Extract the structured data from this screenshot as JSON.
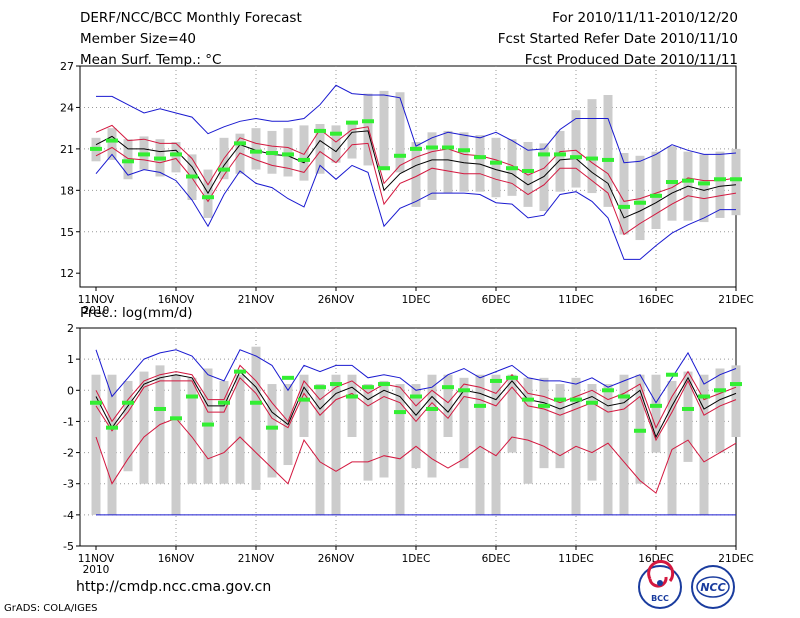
{
  "header": {
    "title": "DERF/NCC/BCC Monthly Forecast",
    "member_size": "Member Size=40",
    "variable": "Mean Surf. Temp.: °C",
    "period": "For 2010/11/11-2010/12/20",
    "started": "Fcst Started Refer Date 2010/11/10",
    "produced": "Fcst Produced Date 2010/11/11"
  },
  "footer": {
    "url": "http://cmdp.ncc.cma.gov.cn",
    "grads": "GrADS: COLA/IGES",
    "logo1_text": "BCC",
    "logo2_text": "NCC"
  },
  "colors": {
    "box": "#cccccc",
    "mean": "#000000",
    "obs": "#33ee33",
    "spread": "#d3183f",
    "extreme": "#1a1ad0",
    "grid": "#999999"
  },
  "chart_data": [
    {
      "type": "line",
      "title": "Mean Surf. Temp.: °C",
      "x_tick_labels": [
        "11NOV",
        "16NOV",
        "21NOV",
        "26NOV",
        "1DEC",
        "6DEC",
        "11DEC",
        "16DEC",
        "21DEC"
      ],
      "x_tick_day_index": [
        0,
        5,
        10,
        15,
        20,
        25,
        30,
        35,
        40
      ],
      "year_label": "2010",
      "ylim": [
        11,
        27
      ],
      "y_ticks": [
        12,
        15,
        18,
        21,
        24,
        27
      ],
      "box_top": [
        21.8,
        22.5,
        21.7,
        21.9,
        21.7,
        21.5,
        20.6,
        19.5,
        21.8,
        22.1,
        22.5,
        22.3,
        22.5,
        22.7,
        22.8,
        22.7,
        23.0,
        25.0,
        25.2,
        25.1,
        21.5,
        22.2,
        22.3,
        22.2,
        22.0,
        21.8,
        21.7,
        21.5,
        21.4,
        22.3,
        23.8,
        24.6,
        24.9,
        20.7,
        20.5,
        20.8,
        21.2,
        20.8,
        20.6,
        20.8,
        21.0
      ],
      "box_bottom": [
        20.1,
        20.2,
        18.8,
        19.5,
        19.0,
        19.3,
        17.3,
        16.0,
        18.8,
        19.2,
        19.5,
        19.2,
        19.0,
        18.7,
        19.2,
        20.0,
        20.3,
        19.8,
        19.6,
        19.3,
        16.8,
        17.3,
        17.8,
        17.9,
        17.9,
        17.5,
        17.6,
        16.8,
        16.5,
        17.9,
        18.2,
        17.8,
        16.8,
        14.8,
        14.4,
        15.2,
        15.8,
        15.8,
        15.7,
        16.0,
        16.2
      ],
      "series": [
        {
          "name": "ensemble max",
          "color": "#1a1ad0",
          "values": [
            24.8,
            24.8,
            24.2,
            23.6,
            23.9,
            23.6,
            23.3,
            22.1,
            22.6,
            23.0,
            23.2,
            23.0,
            23.0,
            23.2,
            24.2,
            25.6,
            25.0,
            24.9,
            24.9,
            24.7,
            21.2,
            21.8,
            22.2,
            22.0,
            21.8,
            22.2,
            21.6,
            20.9,
            21.0,
            22.4,
            23.2,
            23.2,
            23.2,
            20.0,
            20.1,
            20.6,
            21.3,
            20.9,
            20.6,
            20.6,
            20.7
          ]
        },
        {
          "name": "spread upper",
          "color": "#d3183f",
          "values": [
            22.2,
            22.7,
            21.6,
            21.7,
            21.4,
            21.4,
            20.3,
            18.4,
            20.3,
            21.8,
            21.4,
            21.2,
            21.1,
            20.6,
            22.4,
            21.5,
            22.4,
            22.6,
            18.5,
            19.8,
            20.4,
            20.8,
            21.0,
            20.6,
            20.5,
            20.2,
            19.8,
            19.1,
            19.6,
            20.8,
            20.9,
            20.0,
            19.2,
            17.2,
            17.4,
            17.8,
            18.2,
            18.9,
            18.7,
            18.7,
            18.9
          ]
        },
        {
          "name": "ensemble mean",
          "color": "#000000",
          "values": [
            21.3,
            21.9,
            21.0,
            21.0,
            20.8,
            20.9,
            19.7,
            17.8,
            19.8,
            21.3,
            20.9,
            20.6,
            20.5,
            20.0,
            21.6,
            20.8,
            22.2,
            22.3,
            18.0,
            19.2,
            19.8,
            20.2,
            20.2,
            20.0,
            19.9,
            19.5,
            19.2,
            18.4,
            19.0,
            20.2,
            20.3,
            19.3,
            18.5,
            16.0,
            16.5,
            17.1,
            17.8,
            18.3,
            18.0,
            18.3,
            18.4
          ]
        },
        {
          "name": "spread lower",
          "color": "#d3183f",
          "values": [
            20.5,
            21.1,
            20.3,
            20.2,
            20.0,
            20.3,
            18.9,
            17.2,
            19.1,
            20.7,
            20.2,
            19.8,
            19.6,
            19.3,
            20.8,
            20.0,
            21.3,
            21.4,
            17.0,
            18.5,
            19.0,
            19.6,
            19.4,
            19.2,
            19.2,
            18.8,
            18.5,
            17.7,
            18.4,
            19.6,
            19.6,
            18.7,
            17.8,
            14.8,
            15.6,
            16.3,
            17.0,
            17.6,
            17.4,
            17.6,
            17.8
          ]
        },
        {
          "name": "ensemble min",
          "color": "#1a1ad0",
          "values": [
            19.2,
            20.6,
            19.1,
            19.5,
            19.3,
            18.7,
            17.3,
            15.4,
            17.7,
            19.4,
            18.5,
            18.2,
            17.4,
            16.8,
            19.8,
            18.8,
            19.8,
            19.3,
            15.4,
            16.7,
            17.2,
            17.8,
            17.8,
            17.8,
            17.7,
            17.1,
            17.0,
            16.0,
            16.2,
            17.7,
            17.9,
            17.2,
            16.0,
            13.0,
            13.0,
            14.0,
            14.9,
            15.5,
            16.0,
            16.6,
            16.6
          ]
        },
        {
          "name": "observation",
          "color": "#33ee33",
          "values": [
            21.0,
            21.6,
            20.1,
            20.6,
            20.3,
            20.6,
            19.0,
            17.5,
            19.5,
            21.4,
            20.8,
            20.7,
            20.6,
            20.2,
            22.3,
            22.1,
            22.9,
            23.0,
            19.6,
            20.5,
            21.0,
            21.1,
            21.1,
            20.9,
            20.4,
            20.0,
            19.6,
            19.4,
            20.6,
            20.6,
            20.4,
            20.3,
            20.2,
            16.8,
            17.1,
            17.6,
            18.6,
            18.7,
            18.5,
            18.8,
            18.8
          ]
        }
      ]
    },
    {
      "type": "line",
      "title": "Prec.: log(mm/d)",
      "x_tick_labels": [
        "11NOV",
        "16NOV",
        "21NOV",
        "26NOV",
        "1DEC",
        "6DEC",
        "11DEC",
        "16DEC",
        "21DEC"
      ],
      "x_tick_day_index": [
        0,
        5,
        10,
        15,
        20,
        25,
        30,
        35,
        40
      ],
      "year_label": "2010",
      "ylim": [
        -5,
        2
      ],
      "y_ticks": [
        -5,
        -4,
        -3,
        -2,
        -1,
        0,
        1,
        2
      ],
      "box_top": [
        0.5,
        0.5,
        0.3,
        0.6,
        0.8,
        0.5,
        0.4,
        0.7,
        0.3,
        0.5,
        1.4,
        0.2,
        0.2,
        0.5,
        0.2,
        0.5,
        0.5,
        0.2,
        0.3,
        0.2,
        0.2,
        0.5,
        0.5,
        0.4,
        0.5,
        0.5,
        0.5,
        0.4,
        0.4,
        0.2,
        0.4,
        0.2,
        0.2,
        0.5,
        0.5,
        0.5,
        0.3,
        0.6,
        0.5,
        0.7,
        0.8
      ],
      "box_bottom": [
        -4.0,
        -4.0,
        -2.6,
        -3.0,
        -3.0,
        -4.0,
        -3.0,
        -3.0,
        -3.0,
        -3.0,
        -3.2,
        -2.8,
        -2.4,
        -1.5,
        -4.0,
        -4.0,
        -1.5,
        -2.9,
        -2.8,
        -4.0,
        -2.5,
        -2.8,
        -1.5,
        -2.5,
        -4.0,
        -4.0,
        -2.0,
        -3.0,
        -2.5,
        -2.5,
        -4.0,
        -2.9,
        -4.0,
        -4.0,
        -3.0,
        -2.0,
        -4.0,
        -2.3,
        -4.0,
        -2.0,
        -1.5
      ],
      "series": [
        {
          "name": "ensemble max",
          "color": "#1a1ad0",
          "values": [
            1.3,
            -0.2,
            0.4,
            1.0,
            1.2,
            1.3,
            1.1,
            0.5,
            0.3,
            1.3,
            1.1,
            0.8,
            0.0,
            0.8,
            0.6,
            0.8,
            0.8,
            0.4,
            0.5,
            0.4,
            0.0,
            0.1,
            0.5,
            0.7,
            0.4,
            0.6,
            0.8,
            0.4,
            0.3,
            0.3,
            0.2,
            0.4,
            0.1,
            0.3,
            0.5,
            -0.4,
            0.4,
            1.2,
            0.2,
            0.5,
            0.7
          ]
        },
        {
          "name": "spread upper",
          "color": "#d3183f",
          "values": [
            0.0,
            -1.0,
            -0.3,
            0.3,
            0.5,
            0.6,
            0.5,
            -0.3,
            -0.3,
            0.8,
            0.3,
            -0.4,
            -1.0,
            0.3,
            -0.3,
            0.1,
            0.3,
            -0.1,
            0.2,
            0.1,
            -0.5,
            0.0,
            -0.4,
            0.2,
            0.1,
            -0.1,
            0.5,
            -0.1,
            -0.2,
            -0.4,
            -0.2,
            0.0,
            -0.3,
            -0.1,
            0.2,
            -1.2,
            -0.2,
            0.6,
            -0.3,
            -0.1,
            0.1
          ]
        },
        {
          "name": "ensemble mean",
          "color": "#000000",
          "values": [
            -0.2,
            -1.2,
            -0.5,
            0.2,
            0.4,
            0.5,
            0.4,
            -0.5,
            -0.5,
            0.6,
            0.1,
            -0.7,
            -1.1,
            0.1,
            -0.6,
            -0.1,
            0.1,
            -0.3,
            0.0,
            -0.2,
            -0.8,
            -0.2,
            -0.7,
            0.0,
            -0.1,
            -0.3,
            0.3,
            -0.3,
            -0.4,
            -0.6,
            -0.4,
            -0.2,
            -0.5,
            -0.4,
            0.0,
            -1.5,
            -0.5,
            0.4,
            -0.6,
            -0.3,
            -0.1
          ]
        },
        {
          "name": "spread lower",
          "color": "#d3183f",
          "values": [
            -0.5,
            -1.3,
            -0.7,
            0.1,
            0.3,
            0.3,
            0.3,
            -0.7,
            -0.7,
            0.4,
            -0.1,
            -0.9,
            -1.2,
            -0.1,
            -0.8,
            -0.3,
            -0.1,
            -0.5,
            -0.2,
            -0.4,
            -1.0,
            -0.4,
            -0.9,
            -0.2,
            -0.3,
            -0.5,
            0.1,
            -0.5,
            -0.6,
            -0.8,
            -0.6,
            -0.4,
            -0.7,
            -0.6,
            -0.2,
            -1.6,
            -0.7,
            0.3,
            -0.8,
            -0.5,
            -0.3
          ]
        },
        {
          "name": "ensemble min",
          "color": "#1a1ad0",
          "values": [
            -4.0,
            -4.0,
            -4.0,
            -4.0,
            -4.0,
            -4.0,
            -4.0,
            -4.0,
            -4.0,
            -4.0,
            -4.0,
            -4.0,
            -4.0,
            -4.0,
            -4.0,
            -4.0,
            -4.0,
            -4.0,
            -4.0,
            -4.0,
            -4.0,
            -4.0,
            -4.0,
            -4.0,
            -4.0,
            -4.0,
            -4.0,
            -4.0,
            -4.0,
            -4.0,
            -4.0,
            -4.0,
            -4.0,
            -4.0,
            -4.0,
            -4.0,
            -4.0,
            -4.0,
            -4.0,
            -4.0,
            -4.0
          ]
        },
        {
          "name": "observation",
          "color": "#33ee33",
          "values": [
            -0.4,
            -1.2,
            -0.4,
            null,
            -0.6,
            -0.9,
            -0.2,
            -1.1,
            -0.4,
            0.6,
            -0.4,
            -1.2,
            0.4,
            -0.3,
            0.1,
            0.2,
            -0.2,
            0.1,
            0.2,
            -0.7,
            -0.2,
            -0.6,
            0.1,
            0.0,
            -0.5,
            0.3,
            0.4,
            -0.3,
            -0.5,
            -0.3,
            -0.3,
            -0.4,
            0.0,
            -0.2,
            -1.3,
            -0.5,
            0.5,
            -0.6,
            -0.2,
            0.0,
            0.2
          ]
        },
        {
          "name": "lower member",
          "color": "#d3183f",
          "values": [
            -1.5,
            -3.0,
            -2.2,
            -1.5,
            -1.1,
            -0.9,
            -1.5,
            -2.2,
            -2.0,
            -1.5,
            -2.0,
            -2.5,
            -3.0,
            -1.6,
            -2.3,
            -2.6,
            -2.3,
            -2.3,
            -2.1,
            -2.2,
            -1.8,
            -2.2,
            -2.5,
            -2.2,
            -1.8,
            -2.1,
            -1.5,
            -1.6,
            -1.8,
            -2.1,
            -1.8,
            -2.0,
            -1.7,
            -2.3,
            -2.9,
            -3.3,
            -1.9,
            -1.6,
            -2.3,
            -2.0,
            -1.7
          ]
        }
      ]
    }
  ]
}
